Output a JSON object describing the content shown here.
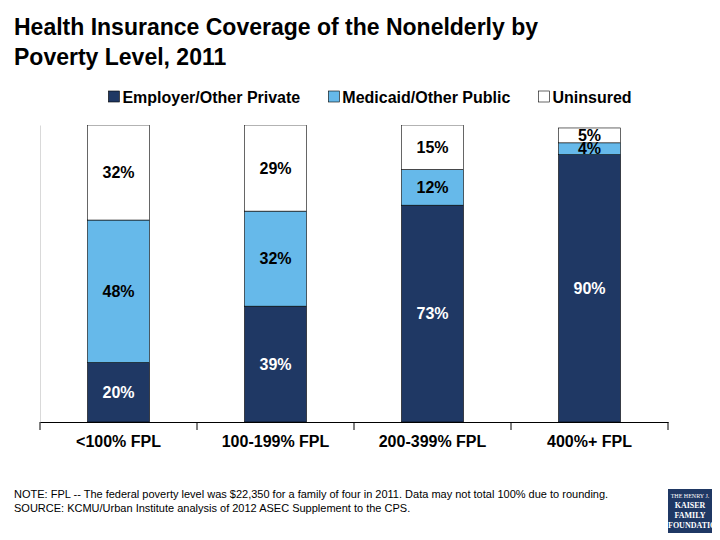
{
  "chart_data": {
    "type": "bar",
    "stacked": true,
    "data_labels": true,
    "tick_labels": "x",
    "title": "Health Insurance Coverage of the Nonelderly by Poverty Level, 2011",
    "categories": [
      "<100% FPL",
      "100-199% FPL",
      "200-399% FPL",
      "400%+ FPL"
    ],
    "series": [
      {
        "name": "Employer/Other Private",
        "color": "#1f3864",
        "values": [
          20,
          39,
          73,
          90
        ],
        "value_labels": [
          "20%",
          "39%",
          "73%",
          "90%"
        ]
      },
      {
        "name": "Medicaid/Other Public",
        "color": "#66b9ea",
        "values": [
          48,
          32,
          12,
          4
        ],
        "value_labels": [
          "48%",
          "32%",
          "12%",
          "4%"
        ]
      },
      {
        "name": "Uninsured",
        "color": "#ffffff",
        "values": [
          32,
          29,
          15,
          5
        ],
        "value_labels": [
          "32%",
          "29%",
          "15%",
          "5%"
        ]
      }
    ],
    "ylim": [
      0,
      100
    ],
    "legend": "top",
    "annotations": [
      "NOTE: FPL -- The federal poverty level was $22,350  for a family of four in 2011.  Data may not total 100% due to rounding.",
      "SOURCE: KCMU/Urban Institute analysis of 2012 ASEC Supplement to the CPS."
    ],
    "logo": [
      "THE HENRY J.",
      "KAISER",
      "FAMILY",
      "FOUNDATION"
    ]
  }
}
